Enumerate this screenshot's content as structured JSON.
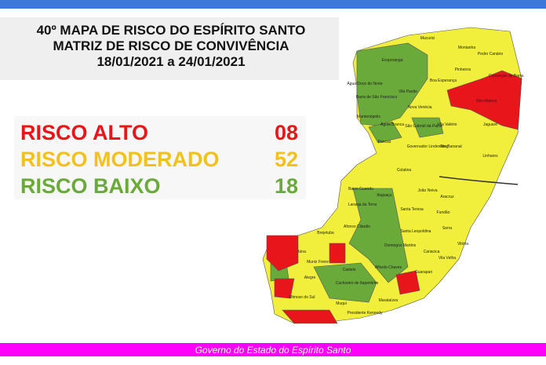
{
  "header": {
    "title_lines": [
      "40º MAPA DE RISCO DO ESPÍRITO SANTO",
      "MATRIZ DE RISCO DE CONVIVÊNCIA",
      "18/01/2021 a 24/01/2021"
    ]
  },
  "legend": [
    {
      "label": "RISCO ALTO",
      "count": "08"
    },
    {
      "label": "RISCO MODERADO",
      "count": "52"
    },
    {
      "label": "RISCO BAIXO",
      "count": "18"
    }
  ],
  "map": {
    "labels": [
      "Mucurici",
      "Montanha",
      "Pedro Canário",
      "Ecoporanga",
      "Pinheiros",
      "Conceição da Barra",
      "Boa Esperança",
      "São Mateus",
      "Vila Pavão",
      "Barra de São Francisco",
      "Nova Venécia",
      "Água Doce do Norte",
      "Mantenópolis",
      "Águia Branca",
      "São Gabriel da Palha",
      "Vila Valério",
      "Jaguaré",
      "Pancas",
      "Governador Lindenberg",
      "Rio Bananal",
      "Linhares",
      "Colatina",
      "Baixo Guandu",
      "Itaguaçu",
      "João Neiva",
      "Aracruz",
      "Laranja da Terra",
      "Santa Teresa",
      "Fundão",
      "Afonso Cláudio",
      "Santa Leopoldina",
      "Serra",
      "Brejetuba",
      "Domingos Martins",
      "Vitória",
      "Cariacica",
      "Vila Velha",
      "Iúna",
      "Muniz Freire",
      "Castelo",
      "Alfredo Chaves",
      "Guarapari",
      "Alegre",
      "Cachoeiro de Itapemirim",
      "Mimoso do Sul",
      "Muqui",
      "Presidente Kennedy",
      "Marataízes"
    ]
  },
  "footer": {
    "text": "Governo do Estado do Espírito Santo"
  }
}
